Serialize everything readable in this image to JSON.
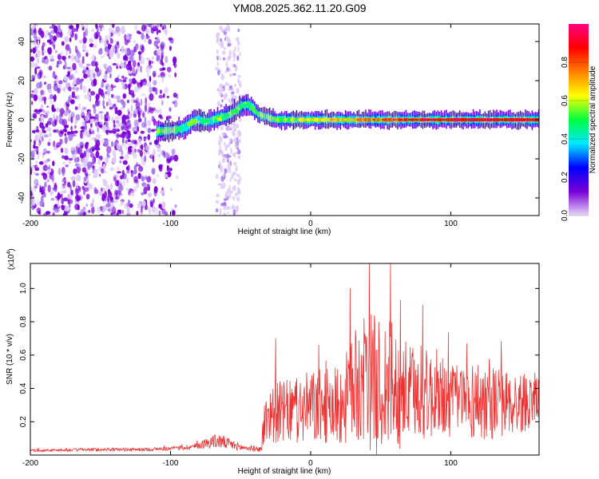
{
  "title": "YM08.2025.362.11.20.G09",
  "chart_data": [
    {
      "type": "heatmap",
      "xlabel": "Height of straight line (km)",
      "ylabel": "Frequency (Hz)",
      "xlim": [
        -200,
        163
      ],
      "ylim": [
        -49,
        49
      ],
      "xticks": [
        "-200",
        "-100",
        "0",
        "100"
      ],
      "xtick_values": [
        -200,
        -100,
        0,
        100
      ],
      "yticks": [
        "-40",
        "-20",
        "0",
        "20",
        "40"
      ],
      "ytick_values": [
        -40,
        -20,
        0,
        20,
        40
      ],
      "colorbar": {
        "label": "Normalized spectral amplitude",
        "range": [
          0.0,
          1.0
        ],
        "ticks": [
          "0.0",
          "0.2",
          "0.4",
          "0.6",
          "0.8"
        ],
        "tick_values": [
          0.0,
          0.2,
          0.4,
          0.6,
          0.8
        ],
        "colormap": [
          "#e8d8f8",
          "#7a00d8",
          "#0000ff",
          "#00e8ff",
          "#00ff40",
          "#ffff00",
          "#ff8000",
          "#ff0000",
          "#ff0080"
        ]
      },
      "ridge_frequency": {
        "x": [
          -110,
          -95,
          -90,
          -85,
          -80,
          -75,
          -70,
          -65,
          -60,
          -55,
          -50,
          -46,
          -42,
          -38,
          -34,
          -30,
          -25,
          -20,
          -15,
          -10,
          -5,
          0,
          20,
          50,
          80,
          110,
          140,
          160
        ],
        "y": [
          -6,
          -5,
          -4,
          -1,
          0,
          -1,
          0,
          1,
          2,
          4,
          7,
          8,
          6,
          3,
          2,
          1,
          0,
          0,
          0,
          0,
          0,
          0,
          0,
          0,
          0,
          0,
          0,
          0
        ]
      },
      "noise_region_x": [
        -200,
        -95
      ],
      "noise_strip_x": [
        -67,
        -50
      ]
    },
    {
      "type": "line",
      "xlabel": "Height of straight line (km)",
      "ylabel": "SNR (10 * v/v)",
      "y_multiplier": "(x10",
      "y_exponent": "4",
      "xlim": [
        -200,
        163
      ],
      "ylim": [
        0,
        1.15
      ],
      "xticks": [
        "-200",
        "-100",
        "0",
        "100"
      ],
      "xtick_values": [
        -200,
        -100,
        0,
        100
      ],
      "yticks": [
        "0.2",
        "0.4",
        "0.6",
        "0.8",
        "1.0"
      ],
      "ytick_values": [
        0.2,
        0.4,
        0.6,
        0.8,
        1.0
      ],
      "color": "#ee3333",
      "envelope": {
        "x": [
          -200,
          -150,
          -120,
          -100,
          -90,
          -80,
          -75,
          -70,
          -65,
          -60,
          -55,
          -50,
          -35,
          -34,
          -30,
          -20,
          -10,
          0,
          10,
          20,
          25,
          30,
          35,
          40,
          45,
          50,
          55,
          60,
          70,
          80,
          90,
          100,
          110,
          120,
          130,
          140,
          150,
          160,
          163
        ],
        "base": [
          0.025,
          0.03,
          0.03,
          0.035,
          0.04,
          0.05,
          0.06,
          0.07,
          0.07,
          0.06,
          0.05,
          0.04,
          0.03,
          0.12,
          0.2,
          0.2,
          0.2,
          0.22,
          0.22,
          0.22,
          0.25,
          0.3,
          0.32,
          0.32,
          0.3,
          0.28,
          0.3,
          0.28,
          0.28,
          0.28,
          0.28,
          0.26,
          0.26,
          0.25,
          0.25,
          0.25,
          0.25,
          0.3,
          0.32
        ],
        "amp": [
          0.015,
          0.02,
          0.02,
          0.025,
          0.03,
          0.04,
          0.06,
          0.08,
          0.09,
          0.07,
          0.06,
          0.04,
          0.03,
          0.25,
          0.35,
          0.38,
          0.4,
          0.45,
          0.45,
          0.5,
          0.55,
          0.65,
          0.75,
          0.8,
          0.85,
          0.8,
          0.85,
          0.75,
          0.6,
          0.55,
          0.55,
          0.45,
          0.45,
          0.5,
          0.45,
          0.4,
          0.38,
          0.3,
          0.25
        ]
      },
      "peaks": [
        {
          "x": 28,
          "y": 1.0
        },
        {
          "x": 42,
          "y": 1.15
        },
        {
          "x": 57,
          "y": 1.15
        },
        {
          "x": 64,
          "y": 0.93
        },
        {
          "x": 80,
          "y": 0.9
        },
        {
          "x": -25,
          "y": 0.7
        }
      ]
    }
  ]
}
